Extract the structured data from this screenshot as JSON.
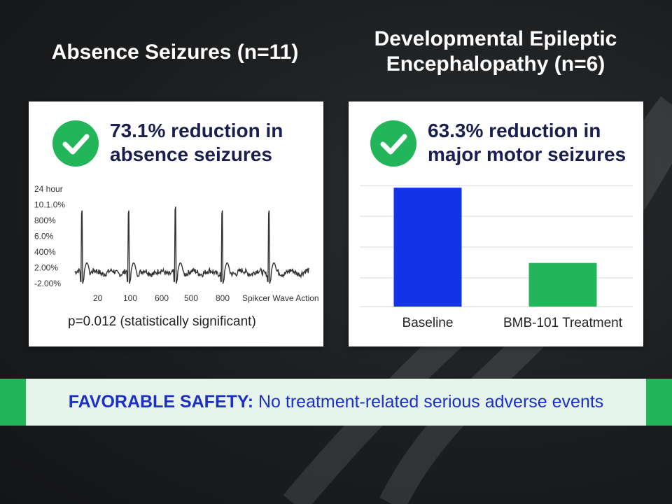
{
  "colors": {
    "accent_green": "#22b55a",
    "baseline_blue": "#1333e8",
    "banner_text_blue": "#1c2fc8",
    "heading_navy": "#1a1f4d"
  },
  "left_panel": {
    "heading": "Absence Seizures (n=11)",
    "icon": "check-circle-icon",
    "result_line1": "73.1% reduction in",
    "result_line2": "absence seizures",
    "p_value": "p=0.012 (statistically significant)"
  },
  "right_panel": {
    "heading_line1": "Developmental Epileptic",
    "heading_line2": "Encephalopathy (n=6)",
    "icon": "check-circle-icon",
    "result_line1": "63.3% reduction in",
    "result_line2": "major motor seizures"
  },
  "banner": {
    "bold": "FAVORABLE SAFETY:",
    "text": " No treatment-related serious adverse events"
  },
  "chart_data": [
    {
      "type": "line",
      "y_tick_labels": [
        "24 hour",
        "10.1.0%",
        "800%",
        "6.0%",
        "400%",
        "2.00%",
        "-2.00%"
      ],
      "x_tick_labels": [
        "20",
        "100",
        "600",
        "500",
        "800",
        "Spikcer Wave Action"
      ],
      "ylim": [
        -2,
        24
      ],
      "baseline": 2.0,
      "spikes": [
        {
          "x": 0.03,
          "peak": 20.5
        },
        {
          "x": 0.23,
          "peak": 20.5
        },
        {
          "x": 0.43,
          "peak": 21.5
        },
        {
          "x": 0.63,
          "peak": 20.5
        },
        {
          "x": 0.83,
          "peak": 20.5
        }
      ],
      "grid": false
    },
    {
      "type": "bar",
      "categories": [
        "Baseline",
        "BMB-101 Treatment"
      ],
      "values": [
        100,
        36.7
      ],
      "ylim": [
        0,
        110
      ],
      "colors": [
        "#1333e8",
        "#22b55a"
      ],
      "grid": true
    }
  ]
}
